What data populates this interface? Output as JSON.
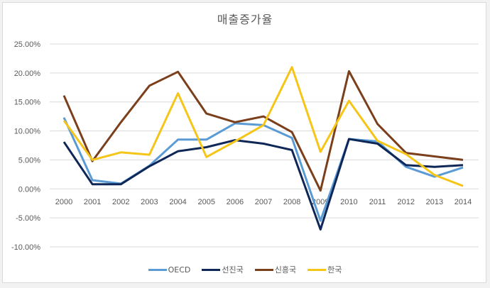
{
  "chart_data": {
    "type": "line",
    "title": "매출증가율",
    "xlabel": "",
    "ylabel": "",
    "categories": [
      "2000",
      "2001",
      "2002",
      "2003",
      "2004",
      "2005",
      "2006",
      "2007",
      "2008",
      "2009",
      "2010",
      "2011",
      "2012",
      "2013",
      "2014"
    ],
    "y_ticks": [
      "25.00%",
      "20.00%",
      "15.00%",
      "10.00%",
      "5.00%",
      "0.00%",
      "-5.00%",
      "-10.00%"
    ],
    "ylim": [
      -10,
      25
    ],
    "grid": true,
    "legend_position": "bottom",
    "series": [
      {
        "name": "OECD",
        "color": "#5b9bd5",
        "values": [
          12.3,
          1.5,
          0.9,
          4.0,
          8.5,
          8.5,
          11.3,
          11.0,
          8.8,
          -5.5,
          8.6,
          8.2,
          3.8,
          2.1,
          3.7
        ]
      },
      {
        "name": "선진국",
        "color": "#0f2757",
        "values": [
          8.1,
          0.8,
          0.8,
          3.9,
          6.5,
          7.2,
          8.4,
          7.8,
          6.7,
          -7.0,
          8.6,
          7.8,
          4.1,
          3.8,
          4.1
        ]
      },
      {
        "name": "신흥국",
        "color": "#7b3f1c",
        "values": [
          16.1,
          4.8,
          11.5,
          17.8,
          20.2,
          13.0,
          11.5,
          12.5,
          9.8,
          -0.3,
          20.3,
          11.2,
          6.2,
          5.6,
          5.0
        ]
      },
      {
        "name": "한국",
        "color": "#f5c518",
        "values": [
          11.8,
          5.0,
          6.3,
          5.9,
          16.5,
          5.5,
          8.2,
          11.0,
          21.0,
          6.4,
          15.2,
          8.3,
          6.0,
          2.4,
          0.5
        ]
      }
    ]
  }
}
